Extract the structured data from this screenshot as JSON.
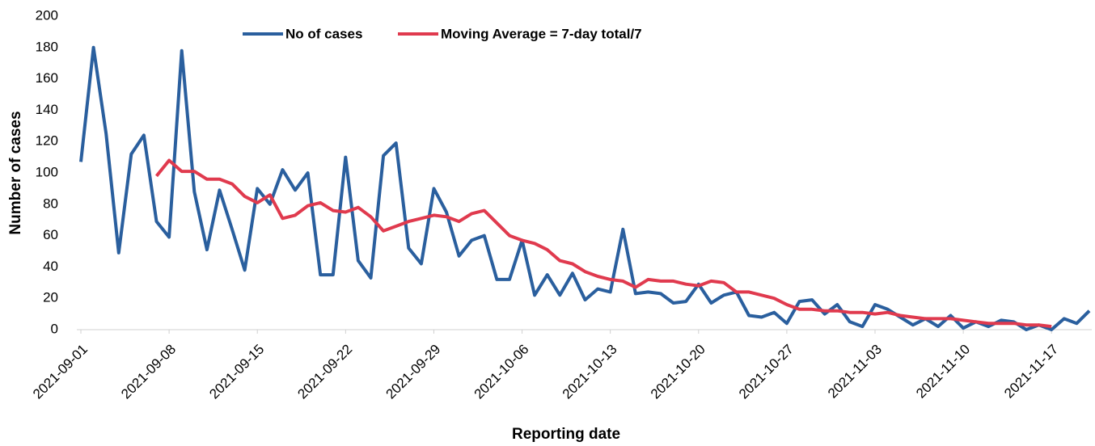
{
  "chart_data": {
    "type": "line",
    "y_label": "Number of cases",
    "x_label": "Reporting date",
    "legend": "top",
    "x": [
      "2021-09-01",
      "2021-09-02",
      "2021-09-03",
      "2021-09-04",
      "2021-09-05",
      "2021-09-06",
      "2021-09-07",
      "2021-09-08",
      "2021-09-09",
      "2021-09-10",
      "2021-09-11",
      "2021-09-12",
      "2021-09-13",
      "2021-09-14",
      "2021-09-15",
      "2021-09-16",
      "2021-09-17",
      "2021-09-18",
      "2021-09-19",
      "2021-09-20",
      "2021-09-21",
      "2021-09-22",
      "2021-09-23",
      "2021-09-24",
      "2021-09-25",
      "2021-09-26",
      "2021-09-27",
      "2021-09-28",
      "2021-09-29",
      "2021-09-30",
      "2021-10-01",
      "2021-10-02",
      "2021-10-03",
      "2021-10-04",
      "2021-10-05",
      "2021-10-06",
      "2021-10-07",
      "2021-10-08",
      "2021-10-09",
      "2021-10-10",
      "2021-10-11",
      "2021-10-12",
      "2021-10-13",
      "2021-10-14",
      "2021-10-15",
      "2021-10-16",
      "2021-10-17",
      "2021-10-18",
      "2021-10-19",
      "2021-10-20",
      "2021-10-21",
      "2021-10-22",
      "2021-10-23",
      "2021-10-24",
      "2021-10-25",
      "2021-10-26",
      "2021-10-27",
      "2021-10-28",
      "2021-10-29",
      "2021-10-30",
      "2021-10-31",
      "2021-11-01",
      "2021-11-02",
      "2021-11-03",
      "2021-11-04",
      "2021-11-05",
      "2021-11-06",
      "2021-11-07",
      "2021-11-08",
      "2021-11-09",
      "2021-11-10",
      "2021-11-11",
      "2021-11-12",
      "2021-11-13",
      "2021-11-14",
      "2021-11-15",
      "2021-11-16",
      "2021-11-17",
      "2021-11-18",
      "2021-11-19",
      "2021-11-20"
    ],
    "xlim": [
      "2021-09-01",
      "2021-11-20"
    ],
    "xticks": [
      "2021-09-01",
      "2021-09-08",
      "2021-09-15",
      "2021-09-22",
      "2021-09-29",
      "2021-10-06",
      "2021-10-13",
      "2021-10-20",
      "2021-10-27",
      "2021-11-03",
      "2021-11-10",
      "2021-11-17"
    ],
    "ylim": [
      0,
      200
    ],
    "yticks": [
      0,
      20,
      40,
      60,
      80,
      100,
      120,
      140,
      160,
      180,
      200
    ],
    "series": [
      {
        "name": "No of cases",
        "color": "#2a5f9e",
        "values": [
          107,
          180,
          125,
          49,
          112,
          124,
          69,
          59,
          178,
          88,
          51,
          89,
          64,
          38,
          90,
          80,
          102,
          89,
          100,
          35,
          35,
          110,
          44,
          33,
          111,
          119,
          52,
          42,
          90,
          75,
          47,
          57,
          60,
          32,
          32,
          57,
          22,
          35,
          22,
          36,
          19,
          26,
          24,
          64,
          23,
          24,
          23,
          17,
          18,
          29,
          17,
          22,
          24,
          9,
          8,
          11,
          4,
          18,
          19,
          10,
          16,
          5,
          2,
          16,
          13,
          8,
          3,
          7,
          2,
          9,
          1,
          5,
          2,
          6,
          5,
          0,
          3,
          0,
          7,
          4,
          12
        ]
      },
      {
        "name": "Moving Average = 7-day total/7",
        "color": "#e03a4e",
        "values": [
          null,
          null,
          null,
          null,
          null,
          null,
          98,
          108,
          101,
          101,
          96,
          96,
          93,
          85,
          81,
          86,
          71,
          73,
          79,
          81,
          76,
          75,
          78,
          72,
          63,
          66,
          69,
          71,
          73,
          72,
          69,
          74,
          76,
          68,
          60,
          57,
          55,
          51,
          44,
          42,
          37,
          34,
          32,
          31,
          27,
          32,
          31,
          31,
          29,
          28,
          31,
          30,
          24,
          24,
          22,
          20,
          16,
          13,
          13,
          12,
          12,
          11,
          11,
          10,
          11,
          9,
          8,
          7,
          7,
          7,
          6,
          5,
          4,
          4,
          4,
          3,
          3,
          2,
          null,
          null,
          null
        ]
      }
    ]
  }
}
